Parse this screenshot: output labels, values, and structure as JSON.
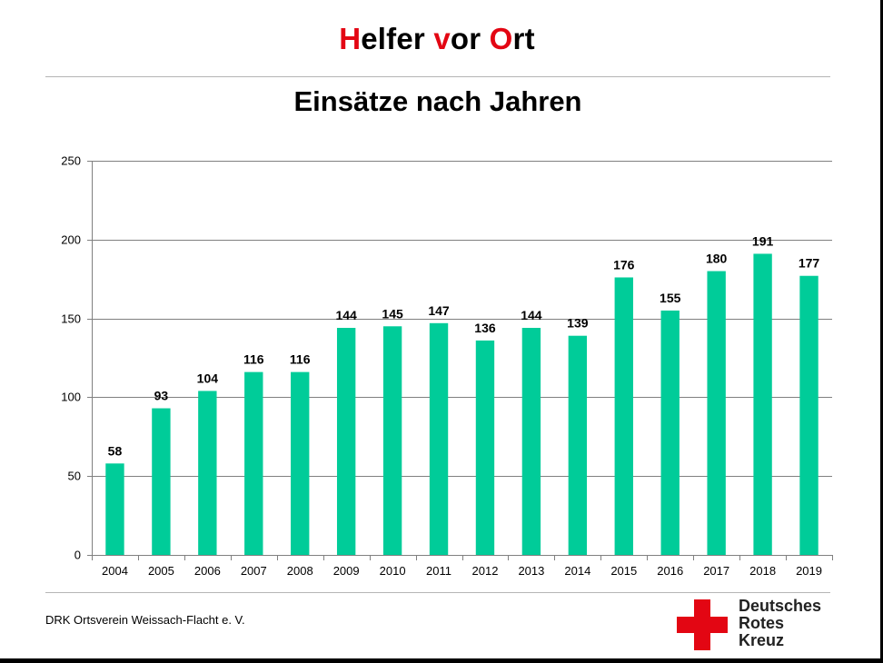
{
  "header": {
    "title_parts": [
      {
        "text": "H",
        "accent": true
      },
      {
        "text": "elfer ",
        "accent": false
      },
      {
        "text": "v",
        "accent": true
      },
      {
        "text": "or ",
        "accent": false
      },
      {
        "text": "O",
        "accent": true
      },
      {
        "text": "rt",
        "accent": false
      }
    ]
  },
  "footer": {
    "organization": "DRK Ortsverein Weissach-Flacht e. V.",
    "logo_lines": [
      "Deutsches",
      "Rotes",
      "Kreuz"
    ]
  },
  "colors": {
    "accent": "#e30613",
    "bar": "#00cc99",
    "gridline": "#808080"
  },
  "chart_data": {
    "type": "bar",
    "title": "Einsätze nach Jahren",
    "categories": [
      "2004",
      "2005",
      "2006",
      "2007",
      "2008",
      "2009",
      "2010",
      "2011",
      "2012",
      "2013",
      "2014",
      "2015",
      "2016",
      "2017",
      "2018",
      "2019"
    ],
    "values": [
      58,
      93,
      104,
      116,
      116,
      144,
      145,
      147,
      136,
      144,
      139,
      176,
      155,
      180,
      191,
      177
    ],
    "yticks": [
      0,
      50,
      100,
      150,
      200,
      250
    ],
    "ylim": [
      0,
      250
    ],
    "xlabel": "",
    "ylabel": "",
    "grid": true,
    "data_labels": true,
    "legend": "none"
  }
}
